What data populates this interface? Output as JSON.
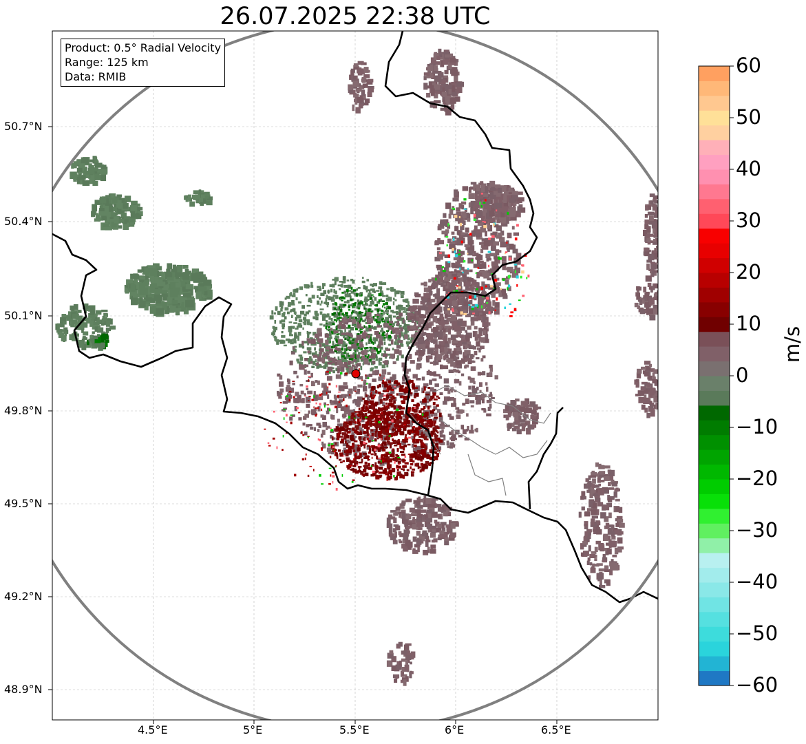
{
  "title": "26.07.2025 22:38 UTC",
  "info": {
    "product": "Product: 0.5° Radial Velocity",
    "range": "Range: 125 km",
    "data": "Data: RMIB"
  },
  "lat_labels": [
    "50.7°N",
    "50.4°N",
    "50.1°N",
    "49.8°N",
    "49.5°N",
    "49.2°N",
    "48.9°N"
  ],
  "lon_labels": [
    "4.5°E",
    "5°E",
    "5.5°E",
    "6°E",
    "6.5°E"
  ],
  "colorbar": {
    "label": "m/s",
    "ticks": [
      "60",
      "50",
      "40",
      "30",
      "20",
      "10",
      "0",
      "−10",
      "−20",
      "−30",
      "−40",
      "−50",
      "−60"
    ],
    "min": -60,
    "max": 60,
    "colors": [
      "#1f78c4",
      "#22b4d4",
      "#2ad4dc",
      "#3ddcdc",
      "#55e0e0",
      "#70e4e4",
      "#8ae8e8",
      "#a2ecec",
      "#b8f0f0",
      "#90f0a8",
      "#60f060",
      "#30f030",
      "#08e008",
      "#00cc00",
      "#00b800",
      "#00a400",
      "#009000",
      "#007c00",
      "#006800",
      "#5a7a5a",
      "#6a806a",
      "#7a7070",
      "#806068",
      "#7a5058",
      "#700000",
      "#880000",
      "#a00000",
      "#b80000",
      "#d00000",
      "#e80000",
      "#f80000",
      "#ff4858",
      "#ff6070",
      "#ff7890",
      "#ff90b0",
      "#ffa0c0",
      "#ffb0b8",
      "#ffd0a0",
      "#ffe098",
      "#ffc890",
      "#ffb878",
      "#ffa060"
    ]
  },
  "radar": {
    "site_lon": 5.5,
    "site_lat": 49.91,
    "range_km": 125
  },
  "colors": {
    "background": "#ffffff",
    "range_ring": "#808080",
    "border": "#000000",
    "admin_border": "#808080",
    "site_marker": "#e00000"
  }
}
